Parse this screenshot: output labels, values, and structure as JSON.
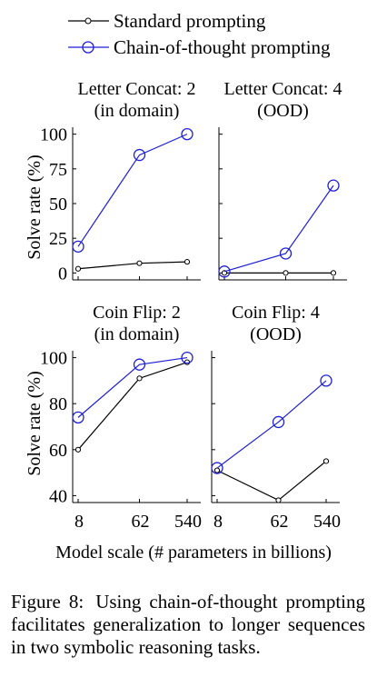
{
  "legend": {
    "standard": "Standard prompting",
    "cot": "Chain-of-thought prompting"
  },
  "xlabel": "Model scale (# parameters in billions)",
  "ylabel": "Solve rate (%)",
  "caption": {
    "label": "Figure 8:",
    "text": "Using chain-of-thought prompting facilitates generalization to longer sequences in two symbolic reasoning tasks."
  },
  "colors": {
    "standard": "#000000",
    "cot": "#1f1fd6"
  },
  "chart_data": [
    {
      "type": "line",
      "title": [
        "Letter Concat: 2",
        "(in domain)"
      ],
      "categories": [
        "8",
        "62",
        "540"
      ],
      "yticks": [
        0,
        25,
        50,
        75,
        100
      ],
      "ylim": [
        0,
        100
      ],
      "series": [
        {
          "name": "Standard prompting",
          "values": [
            3,
            7,
            8
          ]
        },
        {
          "name": "Chain-of-thought prompting",
          "values": [
            19,
            85,
            100
          ]
        }
      ]
    },
    {
      "type": "line",
      "title": [
        "Letter Concat: 4",
        "(OOD)"
      ],
      "categories": [
        "8",
        "62",
        "540"
      ],
      "yticks": [
        0,
        25,
        50,
        75,
        100
      ],
      "ylim": [
        0,
        100
      ],
      "series": [
        {
          "name": "Standard prompting",
          "values": [
            0,
            0,
            0
          ]
        },
        {
          "name": "Chain-of-thought prompting",
          "values": [
            1,
            14,
            63
          ]
        }
      ]
    },
    {
      "type": "line",
      "title": [
        "Coin Flip: 2",
        "(in domain)"
      ],
      "categories": [
        "8",
        "62",
        "540"
      ],
      "yticks": [
        40,
        60,
        80,
        100
      ],
      "ylim": [
        40,
        100
      ],
      "series": [
        {
          "name": "Standard prompting",
          "values": [
            60,
            91,
            98
          ]
        },
        {
          "name": "Chain-of-thought prompting",
          "values": [
            74,
            97,
            100
          ]
        }
      ]
    },
    {
      "type": "line",
      "title": [
        "Coin Flip: 4",
        "(OOD)"
      ],
      "categories": [
        "8",
        "62",
        "540"
      ],
      "yticks": [
        40,
        60,
        80,
        100
      ],
      "ylim": [
        40,
        100
      ],
      "series": [
        {
          "name": "Standard prompting",
          "values": [
            51,
            38,
            55
          ]
        },
        {
          "name": "Chain-of-thought prompting",
          "values": [
            52,
            72,
            90
          ]
        }
      ]
    }
  ]
}
